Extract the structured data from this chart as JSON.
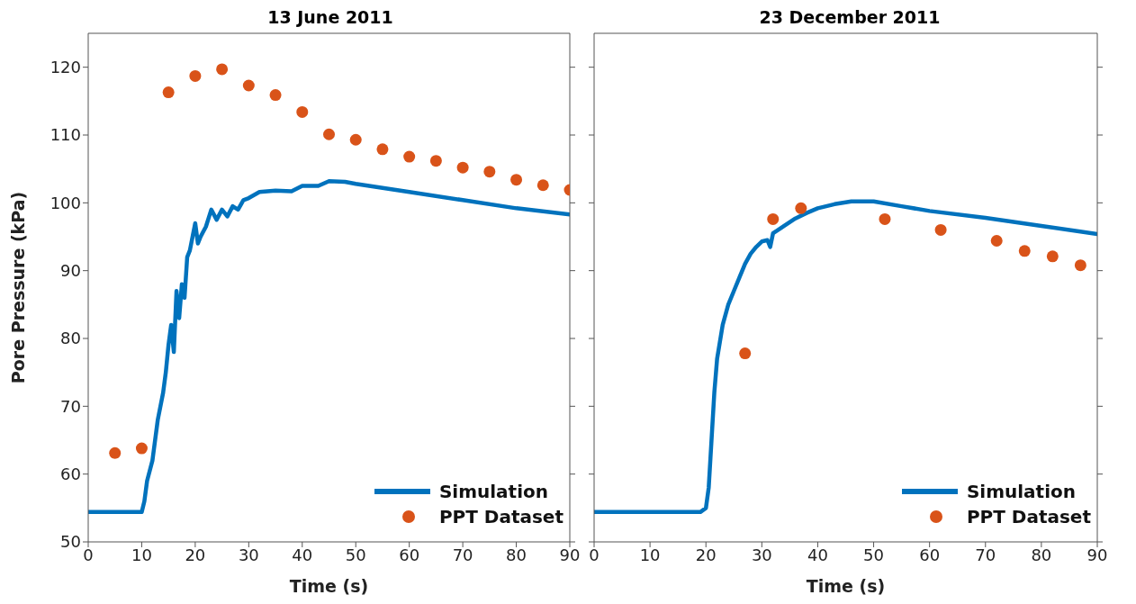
{
  "chart_data": [
    {
      "type": "line",
      "title": "13 June 2011",
      "xlabel": "Time (s)",
      "ylabel": "Pore Pressure (kPa)",
      "xlim": [
        0,
        90
      ],
      "xticks": [
        0,
        10,
        20,
        30,
        40,
        50,
        60,
        70,
        80,
        90
      ],
      "ylim": [
        50,
        125
      ],
      "yticks": [
        50,
        60,
        70,
        80,
        90,
        100,
        110,
        120
      ],
      "legend": "bottom right",
      "grid": false,
      "series": [
        {
          "name": "Simulation",
          "color": "#0072bd",
          "line_style": "solid",
          "x": [
            0,
            10,
            10.5,
            11,
            12,
            13,
            14,
            14.5,
            15,
            15.5,
            16,
            16.5,
            17,
            17.5,
            18,
            18.5,
            19,
            19.5,
            20,
            20.5,
            21,
            22,
            23,
            24,
            25,
            26,
            27,
            28,
            29,
            30,
            32,
            35,
            38,
            40,
            43,
            45,
            48,
            50,
            55,
            60,
            70,
            80,
            90
          ],
          "values": [
            54.4,
            54.4,
            56,
            59,
            62,
            68,
            72,
            75,
            79,
            82,
            78,
            87,
            83,
            88,
            86,
            92,
            93,
            95,
            97,
            94,
            95,
            96.5,
            99,
            97.5,
            99,
            98,
            99.5,
            99,
            100.4,
            100.7,
            101.6,
            101.8,
            101.7,
            102.5,
            102.5,
            103.2,
            103.1,
            102.8,
            102.2,
            101.6,
            100.4,
            99.2,
            98.3
          ]
        },
        {
          "name": "PPT Dataset",
          "type": "scatter",
          "marker": "circle",
          "color": "#d95319",
          "x": [
            5,
            10,
            15,
            20,
            25,
            30,
            35,
            40,
            45,
            50,
            55,
            60,
            65,
            70,
            75,
            80,
            85,
            90
          ],
          "values": [
            63.1,
            63.8,
            116.3,
            118.7,
            119.7,
            117.3,
            115.9,
            113.4,
            110.1,
            109.3,
            107.9,
            106.8,
            106.2,
            105.2,
            104.6,
            103.4,
            102.6,
            101.9
          ]
        }
      ]
    },
    {
      "type": "line",
      "title": "23 December 2011",
      "xlabel": "Time (s)",
      "xlim": [
        0,
        90
      ],
      "xticks": [
        0,
        10,
        20,
        30,
        40,
        50,
        60,
        70,
        80,
        90
      ],
      "ylim": [
        50,
        125
      ],
      "yticks": [
        50,
        60,
        70,
        80,
        90,
        100,
        110,
        120
      ],
      "legend": "bottom right",
      "grid": false,
      "tick_labels": "x",
      "series": [
        {
          "name": "Simulation",
          "color": "#0072bd",
          "line_style": "solid",
          "x": [
            0,
            19,
            20,
            20.5,
            21,
            21.5,
            22,
            23,
            24,
            25,
            26,
            27,
            28,
            29,
            30,
            31,
            31.5,
            32,
            34,
            36,
            38,
            40,
            43,
            46,
            50,
            55,
            60,
            70,
            80,
            90
          ],
          "values": [
            54.4,
            54.4,
            55,
            58,
            65,
            72,
            77,
            82,
            85,
            87,
            89,
            91,
            92.5,
            93.5,
            94.3,
            94.5,
            93.5,
            95.5,
            96.6,
            97.7,
            98.5,
            99.2,
            99.8,
            100.2,
            100.2,
            99.5,
            98.8,
            97.8,
            96.6,
            95.4
          ]
        },
        {
          "name": "PPT Dataset",
          "type": "scatter",
          "marker": "circle",
          "color": "#d95319",
          "x": [
            27,
            32,
            37,
            52,
            62,
            72,
            77,
            82,
            87
          ],
          "values": [
            77.8,
            97.6,
            99.2,
            97.6,
            96.0,
            94.4,
            92.9,
            92.1,
            90.8
          ]
        }
      ]
    }
  ]
}
